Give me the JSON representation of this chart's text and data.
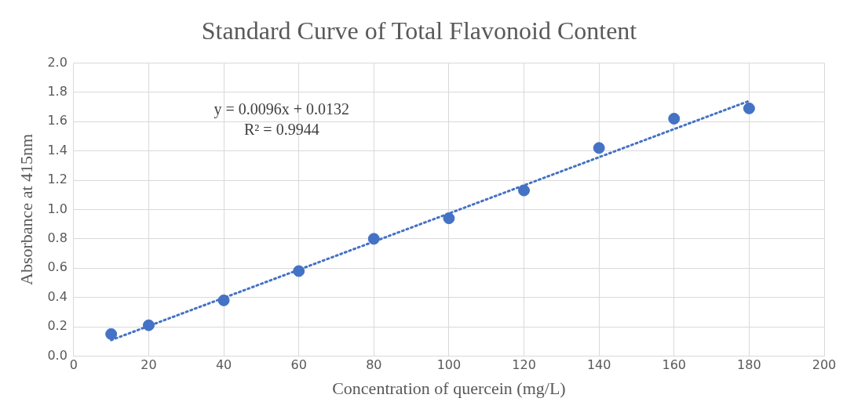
{
  "chart_data": {
    "type": "scatter",
    "title": "Standard Curve of Total Flavonoid Content",
    "xlabel": "Concentration of quercein (mg/L)",
    "ylabel": "Absorbance at 415nm",
    "x": [
      10,
      20,
      40,
      60,
      80,
      100,
      120,
      140,
      160,
      180
    ],
    "series": [
      {
        "type": "scatter",
        "color": "#4472c4",
        "marker": "circle",
        "values": [
          0.15,
          0.21,
          0.38,
          0.58,
          0.8,
          0.94,
          1.13,
          1.42,
          1.62,
          1.69
        ]
      },
      {
        "type": "line",
        "color": "#4472c4",
        "marker": "none",
        "line_style": "dotted",
        "x": [
          10,
          180
        ],
        "values": [
          0.109,
          1.741
        ]
      }
    ],
    "xlim": [
      0,
      200
    ],
    "xticks": [
      0,
      20,
      40,
      60,
      80,
      100,
      120,
      140,
      160,
      180,
      200
    ],
    "ylim": [
      0,
      2
    ],
    "yticks": [
      {
        "value": 0,
        "label": "0.0"
      },
      0.2,
      0.4,
      0.6,
      0.8,
      {
        "value": 1,
        "label": "1.0"
      },
      1.2,
      1.4,
      1.6,
      1.8,
      {
        "value": 2,
        "label": "2.0"
      }
    ],
    "annotations": [
      "y = 0.0096x + 0.0132",
      "R² = 0.9944"
    ],
    "grid": true,
    "legend": false
  }
}
